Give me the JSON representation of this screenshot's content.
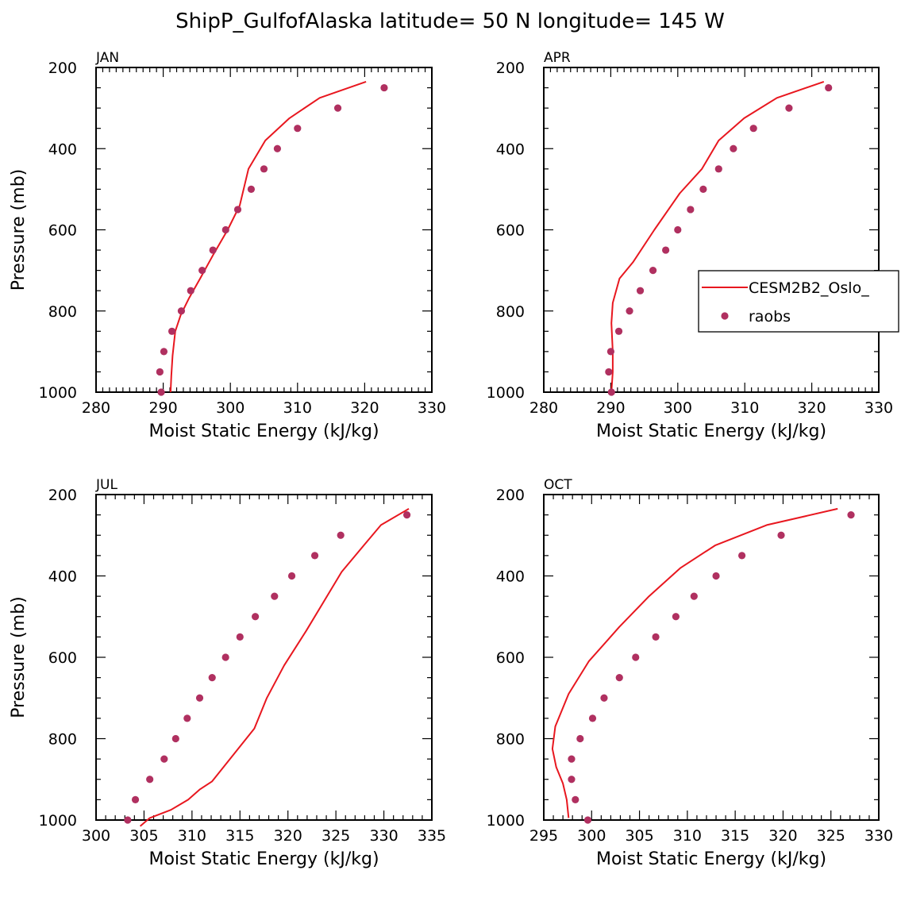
{
  "title": "ShipP_GulfofAlaska  latitude= 50 N longitude= 145 W",
  "colors": {
    "model": "#e8171f",
    "obs": "#b03060",
    "axis": "#000000"
  },
  "legend": {
    "placement": "right of APR panel",
    "entries": [
      {
        "label": "CESM2B2_Oslo_",
        "style": "line",
        "series": "model"
      },
      {
        "label": "raobs",
        "style": "marker",
        "series": "obs"
      }
    ]
  },
  "chart_data": [
    {
      "type": "line",
      "panel": "JAN",
      "xlabel": "Moist Static Energy (kJ/kg)",
      "ylabel": "Pressure (mb)",
      "xlim": [
        280,
        330
      ],
      "ylim": [
        200,
        1000
      ],
      "y_inverted": true,
      "xticks": [
        "280",
        "290",
        "300",
        "310",
        "320",
        "330"
      ],
      "yticks": [
        "200",
        "400",
        "600",
        "800",
        "1000"
      ],
      "series": [
        {
          "name": "CESM2B2_Oslo_",
          "style": "line",
          "x": [
            291.1,
            291.2,
            291.4,
            291.8,
            292.6,
            293.8,
            295.5,
            297.5,
            299.6,
            301.4,
            302.7,
            305.2,
            308.8,
            313.3,
            320.2
          ],
          "y": [
            1000,
            960,
            910,
            850,
            810,
            770,
            720,
            660,
            600,
            540,
            450,
            380,
            325,
            275,
            235
          ]
        },
        {
          "name": "raobs",
          "style": "marker",
          "x": [
            289.7,
            289.5,
            290.1,
            291.3,
            292.7,
            294.1,
            295.8,
            297.4,
            299.3,
            301.1,
            303.1,
            305.0,
            307.0,
            310.0,
            316.0,
            322.9
          ],
          "y": [
            1000,
            950,
            900,
            850,
            800,
            750,
            700,
            650,
            600,
            550,
            500,
            450,
            400,
            350,
            300,
            250
          ]
        }
      ]
    },
    {
      "type": "line",
      "panel": "APR",
      "xlabel": "Moist Static Energy (kJ/kg)",
      "ylabel": "",
      "xlim": [
        280,
        330
      ],
      "ylim": [
        200,
        1000
      ],
      "y_inverted": true,
      "xticks": [
        "280",
        "290",
        "300",
        "310",
        "320",
        "330"
      ],
      "yticks": [
        "200",
        "400",
        "600",
        "800",
        "1000"
      ],
      "series": [
        {
          "name": "CESM2B2_Oslo_",
          "style": "line",
          "x": [
            290.1,
            290.3,
            290.3,
            290.1,
            290.3,
            291.3,
            293.3,
            296.5,
            300.3,
            303.6,
            306.1,
            309.9,
            314.8,
            321.8
          ],
          "y": [
            1000,
            950,
            900,
            830,
            780,
            720,
            680,
            600,
            510,
            450,
            380,
            325,
            275,
            235
          ]
        },
        {
          "name": "raobs",
          "style": "marker",
          "x": [
            290.1,
            289.7,
            290.0,
            291.2,
            292.8,
            294.4,
            296.3,
            298.2,
            300.0,
            301.9,
            303.8,
            306.1,
            308.3,
            311.3,
            316.6,
            322.5
          ],
          "y": [
            1000,
            950,
            900,
            850,
            800,
            750,
            700,
            650,
            600,
            550,
            500,
            450,
            400,
            350,
            300,
            250
          ]
        }
      ]
    },
    {
      "type": "line",
      "panel": "JUL",
      "xlabel": "Moist Static Energy (kJ/kg)",
      "ylabel": "Pressure (mb)",
      "xlim": [
        300,
        335
      ],
      "ylim": [
        200,
        1000
      ],
      "y_inverted": true,
      "xticks": [
        "300",
        "305",
        "310",
        "315",
        "320",
        "325",
        "330",
        "335"
      ],
      "yticks": [
        "200",
        "400",
        "600",
        "800",
        "1000"
      ],
      "series": [
        {
          "name": "CESM2B2_Oslo_",
          "style": "line",
          "x": [
            304.6,
            305.6,
            307.8,
            309.6,
            310.8,
            312.1,
            314.3,
            316.5,
            317.8,
            319.6,
            321.9,
            325.6,
            327.9,
            329.7,
            332.6
          ],
          "y": [
            1015,
            995,
            975,
            950,
            925,
            905,
            840,
            775,
            700,
            620,
            535,
            390,
            325,
            275,
            235
          ]
        },
        {
          "name": "raobs",
          "style": "marker",
          "x": [
            303.3,
            304.1,
            305.6,
            307.1,
            308.3,
            309.5,
            310.8,
            312.1,
            313.5,
            315.0,
            316.6,
            318.6,
            320.4,
            322.8,
            325.5,
            332.4
          ],
          "y": [
            1000,
            950,
            900,
            850,
            800,
            750,
            700,
            650,
            600,
            550,
            500,
            450,
            400,
            350,
            300,
            250
          ]
        }
      ]
    },
    {
      "type": "line",
      "panel": "OCT",
      "xlabel": "Moist Static Energy (kJ/kg)",
      "ylabel": "",
      "xlim": [
        295,
        330
      ],
      "ylim": [
        200,
        1000
      ],
      "y_inverted": true,
      "xticks": [
        "295",
        "300",
        "305",
        "310",
        "315",
        "320",
        "325",
        "330"
      ],
      "yticks": [
        "200",
        "400",
        "600",
        "800",
        "1000"
      ],
      "series": [
        {
          "name": "CESM2B2_Oslo_",
          "style": "line",
          "x": [
            297.6,
            297.4,
            297.0,
            296.3,
            295.9,
            296.2,
            297.6,
            299.7,
            302.9,
            306.0,
            309.3,
            312.9,
            318.3,
            325.7
          ],
          "y": [
            995,
            950,
            910,
            870,
            825,
            770,
            690,
            610,
            525,
            450,
            380,
            325,
            275,
            235
          ]
        },
        {
          "name": "raobs",
          "style": "marker",
          "x": [
            299.6,
            298.3,
            297.9,
            297.9,
            298.8,
            300.1,
            301.3,
            302.9,
            304.6,
            306.7,
            308.8,
            310.7,
            313.0,
            315.7,
            319.8,
            327.1
          ],
          "y": [
            1000,
            950,
            900,
            850,
            800,
            750,
            700,
            650,
            600,
            550,
            500,
            450,
            400,
            350,
            300,
            250
          ]
        }
      ]
    }
  ]
}
